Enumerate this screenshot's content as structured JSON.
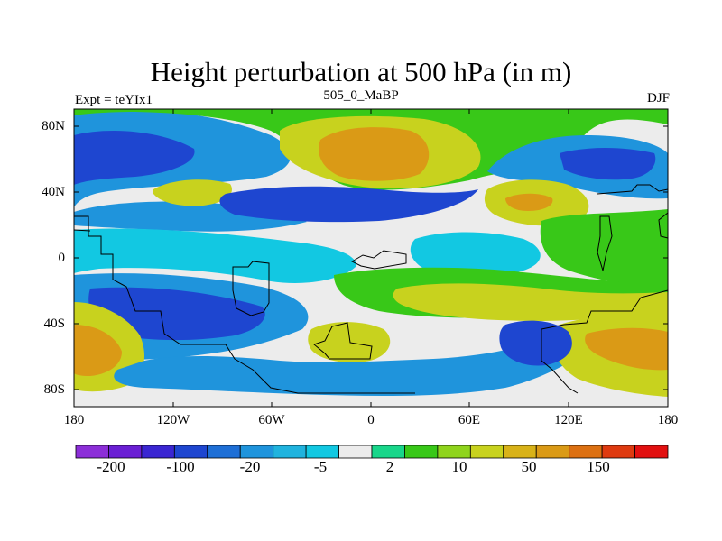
{
  "title": "Height perturbation at 500 hPa (in m)",
  "subtitle_left": "Expt = teYIx1",
  "subtitle_center": "505_0_MaBP",
  "subtitle_right": "DJF",
  "y_ticks": [
    "80N",
    "40N",
    "0",
    "40S",
    "80S"
  ],
  "x_ticks": [
    "180",
    "120W",
    "60W",
    "0",
    "60E",
    "120E",
    "180"
  ],
  "colorbar": {
    "labels": [
      "-200",
      "-100",
      "-20",
      "-5",
      "2",
      "10",
      "50",
      "150"
    ],
    "colors": [
      "#8c2ed8",
      "#6a1fd4",
      "#3a26d2",
      "#1e46d0",
      "#1e6fd6",
      "#1f94dc",
      "#20b3de",
      "#12c8e2",
      "#ececec",
      "#18d68a",
      "#38c818",
      "#8fd41c",
      "#c8d21e",
      "#d8b218",
      "#da9a16",
      "#dc7012",
      "#de3a10",
      "#e21010"
    ]
  },
  "colors": {
    "background": "#ececec",
    "strong_neg": "#1e46d0",
    "mid_neg": "#1f94dc",
    "weak_neg": "#12c8e2",
    "weak_pos": "#18d68a",
    "mid_pos": "#38c818",
    "pos": "#c8d21e",
    "strong_pos": "#da9a16",
    "deep_neg": "#3a26d2",
    "coast": "#000000"
  }
}
